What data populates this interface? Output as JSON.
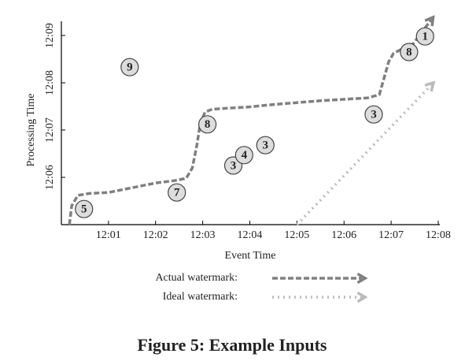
{
  "chart_data": {
    "type": "scatter",
    "xlabel": "Event Time",
    "ylabel": "Processing Time",
    "caption": "Figure 5: Example Inputs",
    "xlim": [
      0,
      8
    ],
    "ylim": [
      5,
      9.3
    ],
    "xticks": [
      {
        "value": 1,
        "label": "12:01"
      },
      {
        "value": 2,
        "label": "12:02"
      },
      {
        "value": 3,
        "label": "12:03"
      },
      {
        "value": 4,
        "label": "12:04"
      },
      {
        "value": 5,
        "label": "12:05"
      },
      {
        "value": 6,
        "label": "12:06"
      },
      {
        "value": 7,
        "label": "12:07"
      },
      {
        "value": 8,
        "label": "12:08"
      }
    ],
    "yticks": [
      {
        "value": 6,
        "label": "12:06"
      },
      {
        "value": 7,
        "label": "12:07"
      },
      {
        "value": 8,
        "label": "12:08"
      },
      {
        "value": 9,
        "label": "12:09"
      }
    ],
    "points": {
      "x": [
        0.48,
        1.45,
        2.45,
        3.1,
        3.65,
        3.88,
        4.33,
        6.63,
        7.38,
        7.72
      ],
      "values": [
        5.33,
        8.33,
        5.68,
        7.12,
        6.25,
        6.47,
        6.68,
        7.33,
        8.65,
        8.98
      ],
      "labels": [
        "5",
        "9",
        "7",
        "8",
        "3",
        "4",
        "3",
        "3",
        "8",
        "1"
      ],
      "color": "#dddddd"
    },
    "series": [
      {
        "name": "Actual watermark:",
        "color": "#808080",
        "style": "dashed",
        "x": [
          0.17,
          0.22,
          0.35,
          0.6,
          1.0,
          1.5,
          2.0,
          2.4,
          2.65,
          2.78,
          2.88,
          2.95,
          3.05,
          3.2,
          3.5,
          4.0,
          4.5,
          5.0,
          5.5,
          6.0,
          6.5,
          6.75,
          6.85,
          6.95,
          7.05,
          7.2,
          7.4,
          7.6,
          7.85
        ],
        "values": [
          5.0,
          5.4,
          5.62,
          5.66,
          5.68,
          5.78,
          5.88,
          5.93,
          5.98,
          6.2,
          6.7,
          7.15,
          7.38,
          7.44,
          7.46,
          7.49,
          7.54,
          7.58,
          7.62,
          7.65,
          7.68,
          7.75,
          8.1,
          8.45,
          8.62,
          8.7,
          8.74,
          9.0,
          9.33
        ]
      },
      {
        "name": "Ideal watermark:",
        "color": "#bbbbbb",
        "style": "dotted",
        "x": [
          5,
          7.85
        ],
        "values": [
          5,
          7.95
        ]
      }
    ]
  }
}
